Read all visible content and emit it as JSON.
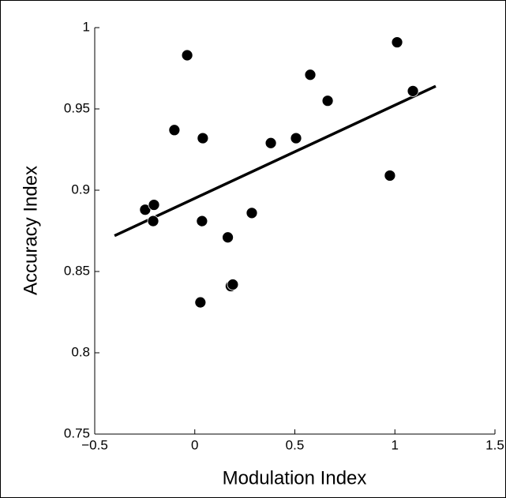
{
  "chart_data": {
    "type": "scatter",
    "xlabel": "Modulation Index",
    "ylabel": "Accuracy Index",
    "xlim": [
      -0.5,
      1.5
    ],
    "ylim": [
      0.75,
      1
    ],
    "xticks": [
      {
        "value": -0.5,
        "label": "−0.5"
      },
      0,
      0.5,
      1,
      1.5
    ],
    "yticks": [
      0.75,
      0.8,
      0.85,
      0.9,
      0.95,
      1
    ],
    "color": "#000000",
    "x": [
      -0.248,
      -0.204,
      -0.208,
      -0.102,
      -0.038,
      0.04,
      0.036,
      0.028,
      0.18,
      0.19,
      0.165,
      0.285,
      0.38,
      0.506,
      0.577,
      0.664,
      0.975,
      1.011,
      1.09
    ],
    "values": [
      0.888,
      0.891,
      0.881,
      0.937,
      0.983,
      0.932,
      0.881,
      0.831,
      0.841,
      0.842,
      0.871,
      0.886,
      0.929,
      0.932,
      0.971,
      0.955,
      0.909,
      0.991,
      0.961
    ],
    "fit": {
      "x": [
        -0.401,
        1.204
      ],
      "values": [
        0.872,
        0.964
      ]
    }
  }
}
